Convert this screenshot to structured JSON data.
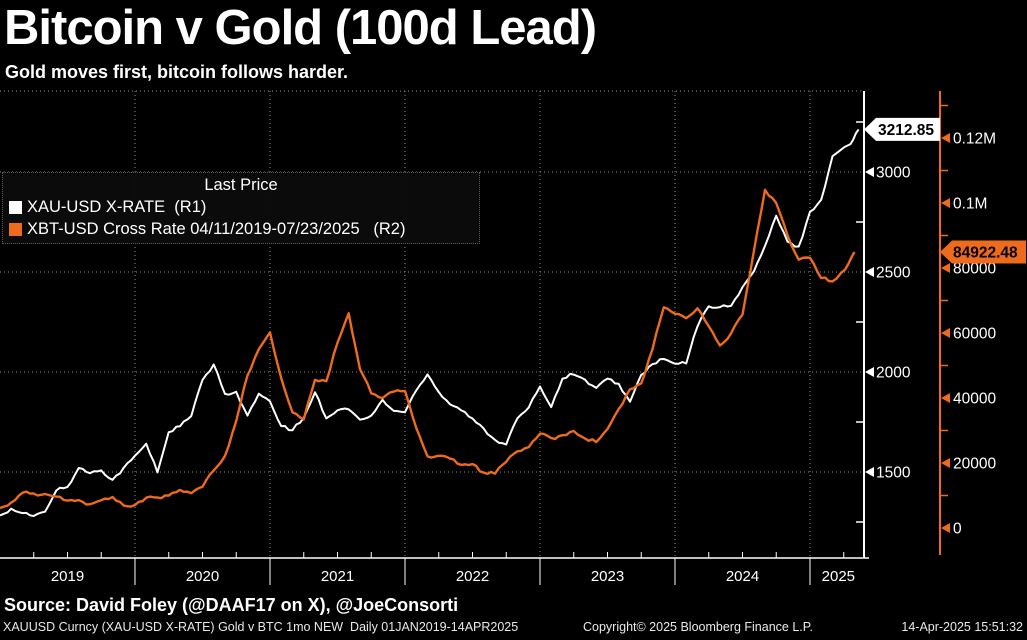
{
  "header": {
    "title": "Bitcoin v Gold (100d Lead)",
    "subtitle": "Gold moves first, bitcoin follows harder."
  },
  "legend": {
    "title": "Last Price",
    "items": [
      {
        "label": "XAU-USD X-RATE  (R1)",
        "color": "#ffffff"
      },
      {
        "label": "XBT-USD Cross Rate 04/11/2019-07/23/2025   (R2)",
        "color": "#ee6a1d"
      }
    ]
  },
  "footer": {
    "source": "Source: David Foley (@DAAF17 on X), @JoeConsorti",
    "left": "XAUUSD Curncy (XAU-USD X-RATE) Gold v BTC 1mo NEW  Daily 01JAN2019-14APR2025",
    "copyright": "Copyright© 2025 Bloomberg Finance L.P.",
    "datetime": "14-Apr-2025 15:51:32"
  },
  "chart_data": {
    "type": "line",
    "title": "Bitcoin v Gold (100d Lead)",
    "colors": {
      "background": "#000000",
      "grid": "#8c8c8c",
      "gold": "#ffffff",
      "btc": "#ee6a1d",
      "badge_text": "#000000"
    },
    "x_axis": {
      "min": 2019.0,
      "max": 2025.4,
      "year_labels": [
        "2019",
        "2020",
        "2021",
        "2022",
        "2023",
        "2024",
        "2025"
      ],
      "label_centers": [
        2019.5,
        2020.5,
        2021.5,
        2022.5,
        2023.5,
        2024.5,
        2025.21
      ],
      "boundaries": [
        2020,
        2021,
        2022,
        2023,
        2024,
        2025
      ]
    },
    "right_axis_gold": {
      "name": "R1",
      "color": "#ffffff",
      "min": 1070,
      "max": 3405,
      "ticks": [
        {
          "v": 1500,
          "t": "1500"
        },
        {
          "v": 2000,
          "t": "2000"
        },
        {
          "v": 2500,
          "t": "2500"
        },
        {
          "v": 3000,
          "t": "3000"
        }
      ],
      "minor_ticks": [
        1250,
        1750,
        2250,
        2750,
        3250
      ],
      "last": {
        "v": 3212.85,
        "t": "3212.85"
      }
    },
    "right_axis_btc": {
      "name": "R2",
      "color": "#ee6a1d",
      "min": -9231,
      "max": 134462,
      "ticks": [
        {
          "v": 0,
          "t": "0"
        },
        {
          "v": 20000,
          "t": "20000"
        },
        {
          "v": 40000,
          "t": "40000"
        },
        {
          "v": 60000,
          "t": "60000"
        },
        {
          "v": 80000,
          "t": "80000"
        },
        {
          "v": 100000,
          "t": "0.1M"
        },
        {
          "v": 120000,
          "t": "0.12M"
        }
      ],
      "minor_ticks": [
        10000,
        30000,
        50000,
        70000,
        90000,
        110000,
        130000
      ],
      "last": {
        "v": 84922.48,
        "t": "84922.48"
      }
    },
    "series": [
      {
        "name": "XAU-USD X-RATE",
        "axis": "R1",
        "color": "#ffffff",
        "width": 2,
        "monthly_start": 2019.0,
        "values": [
          1285,
          1315,
          1293,
          1280,
          1300,
          1410,
          1425,
          1520,
          1495,
          1510,
          1460,
          1520,
          1580,
          1640,
          1500,
          1700,
          1730,
          1780,
          1960,
          2035,
          1890,
          1900,
          1780,
          1890,
          1850,
          1730,
          1710,
          1770,
          1900,
          1770,
          1810,
          1815,
          1760,
          1780,
          1860,
          1805,
          1800,
          1910,
          1990,
          1900,
          1840,
          1810,
          1765,
          1715,
          1660,
          1640,
          1770,
          1820,
          1930,
          1825,
          1970,
          1990,
          1960,
          1920,
          1965,
          1940,
          1850,
          1985,
          2040,
          2065,
          2040,
          2045,
          2230,
          2330,
          2325,
          2330,
          2425,
          2500,
          2630,
          2780,
          2650,
          2625,
          2800,
          2860,
          3080
        ],
        "tail": [
          [
            2025.3,
            3140
          ],
          [
            2025.36,
            3212.85
          ]
        ]
      },
      {
        "name": "XBT-USD Cross Rate",
        "axis": "R2",
        "color": "#ee6a1d",
        "width": 2.4,
        "monthly_start": 2019.0,
        "values": [
          6000,
          7980,
          11000,
          10500,
          10300,
          9700,
          8300,
          8600,
          7200,
          8500,
          9600,
          6900,
          7100,
          9200,
          9400,
          9900,
          11600,
          10700,
          12750,
          17700,
          22200,
          33000,
          47000,
          55000,
          60000,
          46000,
          35500,
          33500,
          45600,
          45000,
          57000,
          66000,
          49000,
          41500,
          40000,
          42000,
          42000,
          31000,
          22000,
          22300,
          21500,
          19500,
          19500,
          17000,
          16900,
          20500,
          23500,
          25000,
          29000,
          27500,
          28500,
          29900,
          27600,
          26500,
          30500,
          36500,
          42500,
          44500,
          55000,
          68000,
          66000,
          64500,
          67500,
          62000,
          56000,
          60000,
          65500,
          85000,
          104000,
          100000,
          90000,
          82500,
          83000,
          77000,
          76000
        ],
        "tail": [
          [
            2025.26,
            79500
          ],
          [
            2025.33,
            84922.48
          ]
        ]
      }
    ]
  }
}
